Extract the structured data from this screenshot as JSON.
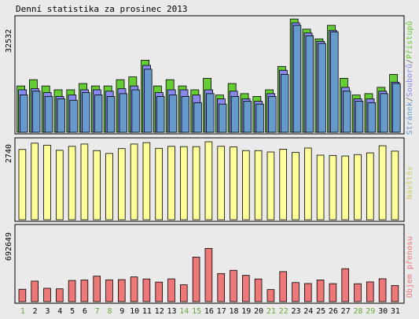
{
  "colors": {
    "background": "#eaeaea",
    "panel_border": "#000000",
    "pristupy": "#66cc33",
    "soubory": "#8888ee",
    "stranky": "#6699cc",
    "navstevy": "#ffff99",
    "objem": "#ee7777",
    "weekend_day_label": "#66aa33",
    "weekday_label": "#000000"
  },
  "chart_data": [
    {
      "type": "bar",
      "title": "Denní statistika za prosinec 2013",
      "categories": [
        "1",
        "2",
        "3",
        "4",
        "5",
        "6",
        "7",
        "8",
        "9",
        "10",
        "11",
        "12",
        "13",
        "14",
        "15",
        "16",
        "17",
        "18",
        "19",
        "20",
        "21",
        "22",
        "23",
        "24",
        "25",
        "26",
        "27",
        "28",
        "29",
        "30",
        "31"
      ],
      "weekend_days": [
        "1",
        "7",
        "8",
        "14",
        "15",
        "21",
        "22",
        "28",
        "29"
      ],
      "ymax_label": "32532",
      "ylim": [
        0,
        32532
      ],
      "right_label_parts": [
        "Stránek",
        "Souborů",
        "Přístupů"
      ],
      "series": [
        {
          "name": "Přístupů",
          "color_key": "pristupy",
          "values": [
            13300,
            15100,
            13300,
            12200,
            12200,
            14000,
            13300,
            13300,
            15100,
            15900,
            20700,
            13300,
            15100,
            13300,
            12200,
            15500,
            10700,
            14000,
            11100,
            10300,
            12200,
            18900,
            32500,
            29600,
            26800,
            30700,
            15500,
            10700,
            11100,
            12900,
            16600
          ]
        },
        {
          "name": "Souborů",
          "color_key": "soubory",
          "values": [
            12200,
            12500,
            11400,
            10300,
            10700,
            12200,
            12200,
            11800,
            12500,
            13300,
            19200,
            11400,
            12200,
            12200,
            10700,
            12200,
            9600,
            11800,
            9600,
            8900,
            11100,
            17800,
            31400,
            28500,
            26100,
            29200,
            12900,
            9600,
            9600,
            11800,
            14400
          ]
        },
        {
          "name": "Stránek",
          "color_key": "stranky",
          "values": [
            10700,
            11800,
            10300,
            9600,
            9200,
            11400,
            10700,
            10300,
            11100,
            12200,
            18100,
            10300,
            10700,
            10300,
            8500,
            11100,
            8100,
            10300,
            8900,
            8100,
            10300,
            16600,
            30700,
            27700,
            25500,
            28800,
            11800,
            8900,
            8500,
            11100,
            14000
          ]
        }
      ]
    },
    {
      "type": "bar",
      "ymax_label": "2740",
      "ylim": [
        0,
        2740
      ],
      "right_label": "Návštěv",
      "series": [
        {
          "name": "Návštěv",
          "color_key": "navstevy",
          "values": [
            2470,
            2690,
            2620,
            2440,
            2580,
            2660,
            2430,
            2330,
            2500,
            2660,
            2710,
            2510,
            2580,
            2570,
            2570,
            2740,
            2580,
            2560,
            2430,
            2430,
            2380,
            2480,
            2370,
            2520,
            2270,
            2260,
            2240,
            2290,
            2350,
            2600,
            2410
          ]
        }
      ]
    },
    {
      "type": "bar",
      "ymax_label": "692649",
      "ylim": [
        0,
        692649
      ],
      "right_label": "Objem přenosu",
      "series": [
        {
          "name": "Objem přenosu",
          "color_key": "objem",
          "values": [
            115000,
            190000,
            124000,
            119000,
            196000,
            200000,
            236000,
            202000,
            204000,
            229000,
            210000,
            181000,
            211000,
            156000,
            412000,
            493000,
            260000,
            290000,
            243000,
            210000,
            112000,
            278000,
            177000,
            168000,
            201000,
            167000,
            305000,
            166000,
            183000,
            212000,
            149000
          ]
        }
      ]
    }
  ]
}
